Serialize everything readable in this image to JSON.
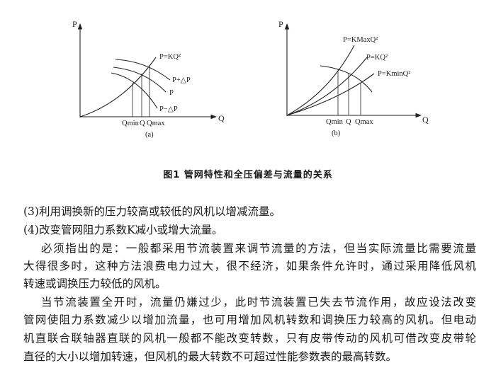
{
  "figure": {
    "caption": "图1 管网特性和全压偏差与流量的关系",
    "panel_a": {
      "label": "(a)",
      "axis_p": "P",
      "axis_q": "Q",
      "curve_system": "P=KQ²",
      "curve_upper": "P+△P",
      "curve_mid": "P",
      "curve_lower": "P−△P",
      "q_min": "Qmin",
      "q": "Q",
      "q_max": "Qmax"
    },
    "panel_b": {
      "label": "(b)",
      "axis_p": "P",
      "axis_q": "Q",
      "curve_kmax": "P=KMaxQ²",
      "curve_k": "P=KQ²",
      "curve_kmin": "P=KminQ²",
      "q_min": "Qmin",
      "q": "Q",
      "q_max": "Qmax"
    }
  },
  "body": {
    "lines": [
      "(3)利用调换新的压力较高或较低的风机以增减流量。",
      "(4)改变管网阻力系数K减小或增大流量。",
      "必须指出的是：一般都采用节流装置来调节流量的方法，但当实际流量比需要流量",
      "大得很多时，这种方法浪费电力过大，很不经济，如果条件允许时，通过采用降低风机",
      "转速或调换压力较低的风机。",
      "当节流装置全开时，流量仍嫌过少，此时节流装置已失去节流作用，故应设法改变",
      "管网使阻力系数减少以增加流量，也可用增加风机转数和调换压力较高的风机。但电动",
      "机直联合联轴器直联的风机一般都不能改变转数，只有皮带传动的风机可借改变皮带轮",
      "直径的大小以增加转速，但风机的最大转数不可超过性能参数表的最高转数。"
    ]
  }
}
